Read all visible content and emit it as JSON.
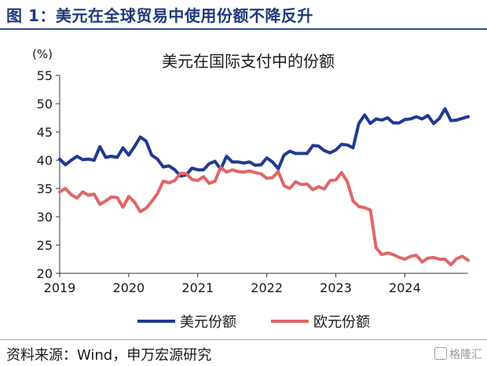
{
  "figure": {
    "title": "图 1：美元在全球贸易中使用份额不降反升",
    "source": "资料来源：Wind，申万宏源研究",
    "watermark": "格隆汇"
  },
  "colors": {
    "usd": "#1f3a93",
    "eur": "#e06666",
    "header_rule": "#2d4f9e"
  },
  "chart_data": {
    "type": "line",
    "title": "美元在国际支付中的份额",
    "unit_label": "(%)",
    "xlabel": "",
    "ylabel": "",
    "ylim": [
      20,
      55
    ],
    "yticks": [
      20,
      25,
      30,
      35,
      40,
      45,
      50,
      55
    ],
    "xlim": [
      2019.0,
      2024.917
    ],
    "xticks": [
      2019,
      2020,
      2021,
      2022,
      2023,
      2024
    ],
    "xtick_labels": [
      "2019",
      "2020",
      "2021",
      "2022",
      "2023",
      "2024"
    ],
    "grid": false,
    "legend_position": "bottom",
    "series": [
      {
        "name": "美元份额",
        "color": "#1f3a93",
        "x": [
          2019.0,
          2019.083,
          2019.167,
          2019.25,
          2019.333,
          2019.417,
          2019.5,
          2019.583,
          2019.667,
          2019.75,
          2019.833,
          2019.917,
          2020.0,
          2020.083,
          2020.167,
          2020.25,
          2020.333,
          2020.417,
          2020.5,
          2020.583,
          2020.667,
          2020.75,
          2020.833,
          2020.917,
          2021.0,
          2021.083,
          2021.167,
          2021.25,
          2021.333,
          2021.417,
          2021.5,
          2021.583,
          2021.667,
          2021.75,
          2021.833,
          2021.917,
          2022.0,
          2022.083,
          2022.167,
          2022.25,
          2022.333,
          2022.417,
          2022.5,
          2022.583,
          2022.667,
          2022.75,
          2022.833,
          2022.917,
          2023.0,
          2023.083,
          2023.167,
          2023.25,
          2023.333,
          2023.417,
          2023.5,
          2023.583,
          2023.667,
          2023.75,
          2023.833,
          2023.917,
          2024.0,
          2024.083,
          2024.167,
          2024.25,
          2024.333,
          2024.417,
          2024.5,
          2024.583,
          2024.667,
          2024.75,
          2024.833,
          2024.917
        ],
        "y": [
          40.2,
          39.2,
          40.0,
          40.7,
          40.1,
          40.2,
          40.0,
          42.4,
          40.5,
          40.7,
          40.5,
          42.2,
          40.9,
          42.4,
          44.1,
          43.4,
          40.9,
          40.2,
          38.8,
          39.0,
          38.3,
          37.2,
          37.4,
          38.6,
          38.3,
          38.3,
          39.4,
          39.8,
          38.4,
          40.7,
          39.7,
          39.7,
          39.5,
          39.7,
          39.1,
          39.2,
          40.4,
          39.7,
          38.5,
          40.9,
          41.6,
          41.2,
          41.2,
          41.2,
          42.6,
          42.5,
          41.7,
          41.3,
          41.8,
          42.8,
          42.7,
          42.2,
          46.5,
          48.0,
          46.5,
          47.3,
          47.1,
          47.5,
          46.6,
          46.6,
          47.2,
          47.3,
          47.7,
          47.3,
          47.9,
          46.5,
          47.4,
          49.1,
          47.0,
          47.1,
          47.4,
          47.7
        ]
      },
      {
        "name": "欧元份额",
        "color": "#e06666",
        "x": [
          2019.0,
          2019.083,
          2019.167,
          2019.25,
          2019.333,
          2019.417,
          2019.5,
          2019.583,
          2019.667,
          2019.75,
          2019.833,
          2019.917,
          2020.0,
          2020.083,
          2020.167,
          2020.25,
          2020.333,
          2020.417,
          2020.5,
          2020.583,
          2020.667,
          2020.75,
          2020.833,
          2020.917,
          2021.0,
          2021.083,
          2021.167,
          2021.25,
          2021.333,
          2021.417,
          2021.5,
          2021.583,
          2021.667,
          2021.75,
          2021.833,
          2021.917,
          2022.0,
          2022.083,
          2022.167,
          2022.25,
          2022.333,
          2022.417,
          2022.5,
          2022.583,
          2022.667,
          2022.75,
          2022.833,
          2022.917,
          2023.0,
          2023.083,
          2023.167,
          2023.25,
          2023.333,
          2023.417,
          2023.5,
          2023.583,
          2023.667,
          2023.75,
          2023.833,
          2023.917,
          2024.0,
          2024.083,
          2024.167,
          2024.25,
          2024.333,
          2024.417,
          2024.5,
          2024.583,
          2024.667,
          2024.75,
          2024.833,
          2024.917
        ],
        "y": [
          34.4,
          35.0,
          33.9,
          33.3,
          34.4,
          33.8,
          34.0,
          32.2,
          32.8,
          33.5,
          33.4,
          31.7,
          33.6,
          32.6,
          30.9,
          31.5,
          32.7,
          34.1,
          36.3,
          36.0,
          36.4,
          37.7,
          37.6,
          36.6,
          36.4,
          37.1,
          35.9,
          36.3,
          38.7,
          37.9,
          38.3,
          38.0,
          37.9,
          38.1,
          37.8,
          37.6,
          36.8,
          36.9,
          38.0,
          35.5,
          35.0,
          36.2,
          35.7,
          35.8,
          34.8,
          35.3,
          34.9,
          36.4,
          36.5,
          37.8,
          36.2,
          32.8,
          31.8,
          31.6,
          31.2,
          24.5,
          23.3,
          23.6,
          23.3,
          22.8,
          22.5,
          23.0,
          23.2,
          22.0,
          22.7,
          22.8,
          22.5,
          22.5,
          21.5,
          22.6,
          23.0,
          22.3
        ]
      }
    ]
  }
}
